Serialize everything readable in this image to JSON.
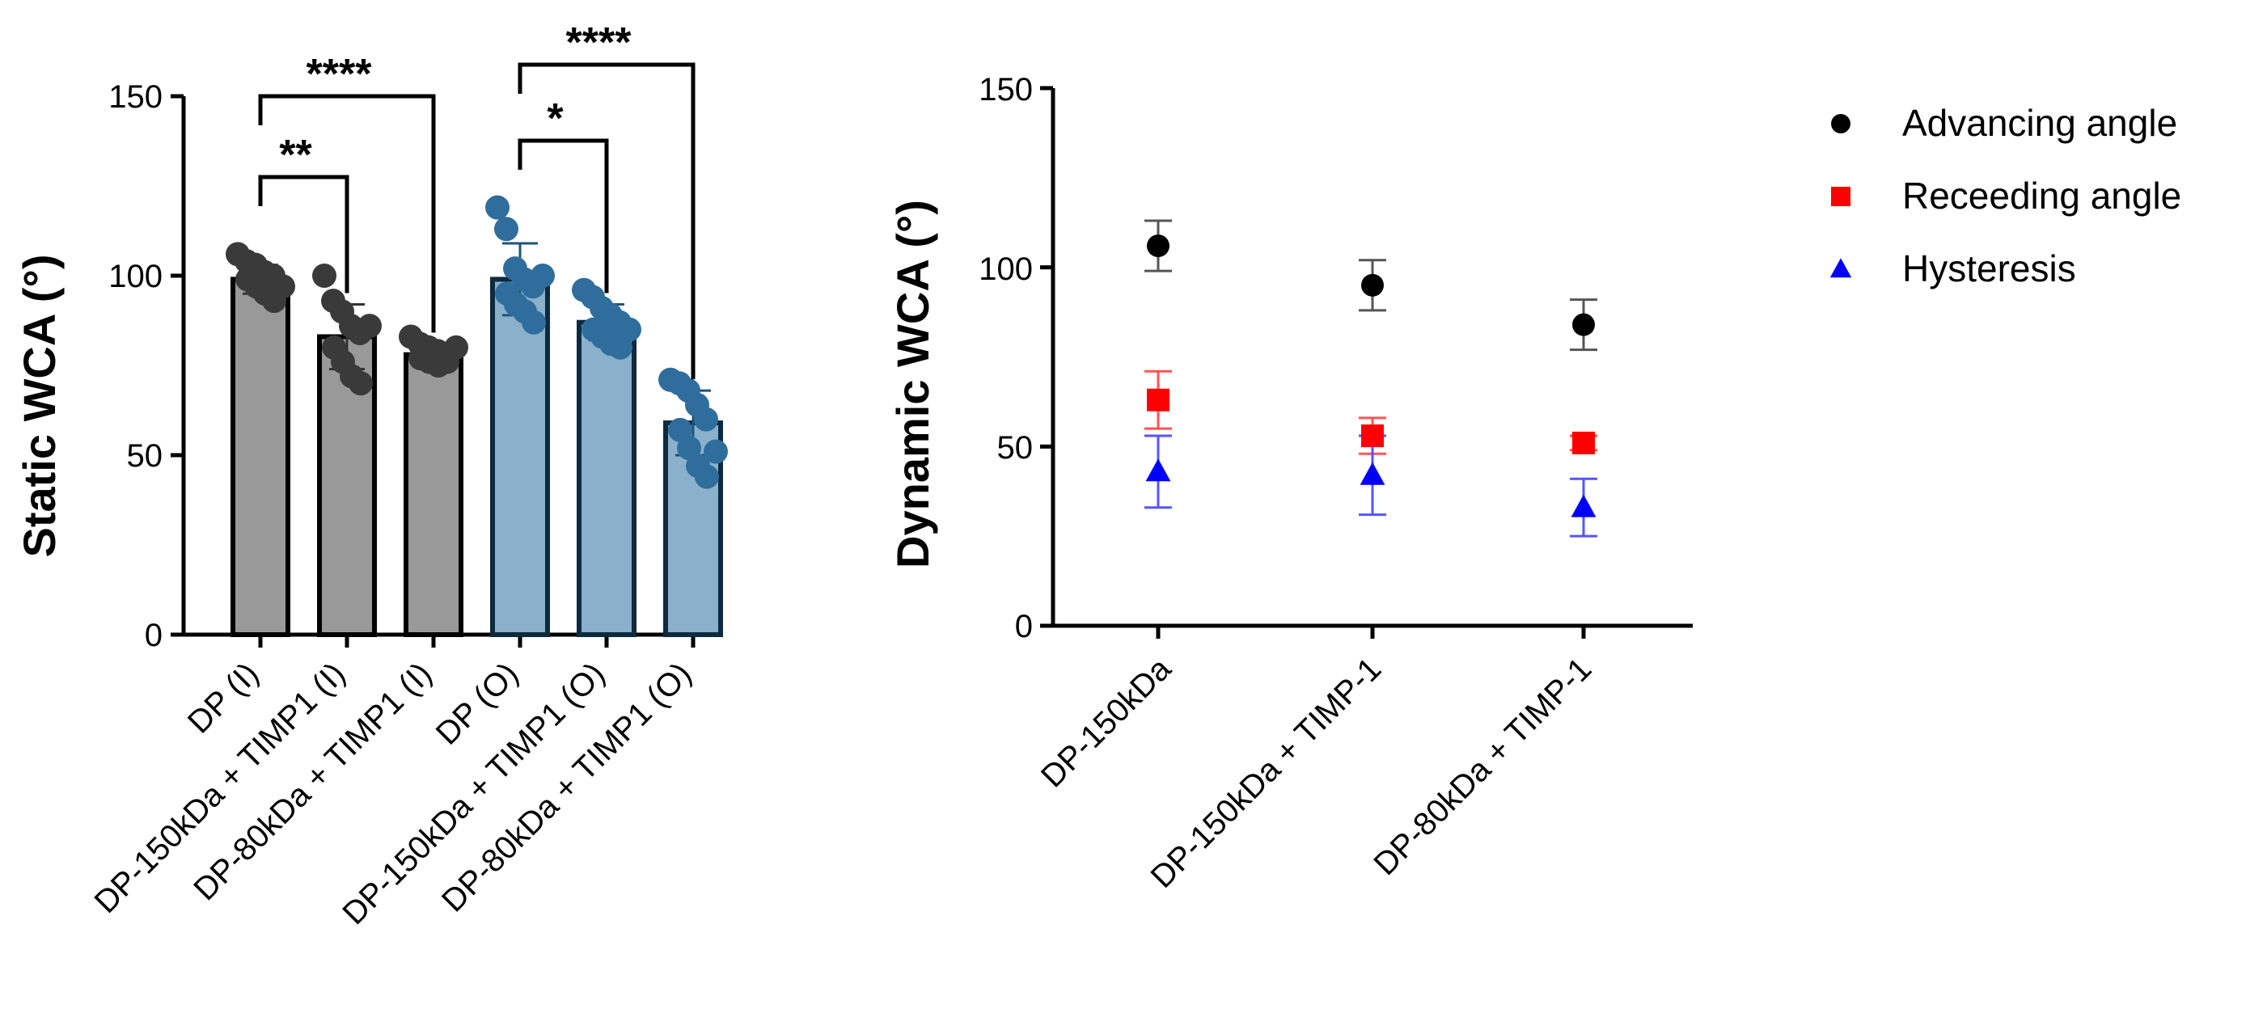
{
  "chart_data": [
    {
      "type": "bar",
      "title": "",
      "xlabel": "",
      "ylabel": "Static WCA (°)",
      "ylim": [
        0,
        150
      ],
      "yticks": [
        "0",
        "50",
        "100",
        "150"
      ],
      "categories": [
        "DP (I)",
        "DP-150kDa + TIMP1 (I)",
        "DP-80kDa + TIMP1 (I)",
        "DP (O)",
        "DP-150kDa + TIMP1 (O)",
        "DP-80kDa + TIMP1 (O)"
      ],
      "values": [
        99,
        83,
        78,
        99,
        87,
        59
      ],
      "errors": [
        4,
        9,
        3,
        10,
        5,
        9
      ],
      "colors": [
        "#999999",
        "#999999",
        "#999999",
        "#8ab0cb",
        "#8ab0cb",
        "#8ab0cb"
      ],
      "point_colors": [
        "#3a3a3a",
        "#3a3a3a",
        "#3a3a3a",
        "#2f6e9c",
        "#2f6e9c",
        "#2f6e9c"
      ],
      "points": [
        [
          106,
          104,
          103,
          101,
          100,
          99,
          97,
          95,
          93,
          97
        ],
        [
          100,
          93,
          90,
          86,
          84,
          80,
          76,
          72,
          70,
          86
        ],
        [
          83,
          81,
          80,
          79,
          78,
          77,
          76,
          75,
          76,
          80
        ],
        [
          119,
          113,
          102,
          99,
          97,
          95,
          92,
          90,
          87,
          100
        ],
        [
          96,
          94,
          91,
          89,
          87,
          85,
          83,
          81,
          80,
          85
        ],
        [
          71,
          70,
          68,
          64,
          60,
          57,
          52,
          47,
          44,
          51
        ]
      ],
      "significance": [
        {
          "from": 0,
          "to": 1,
          "label": "**",
          "level": 1
        },
        {
          "from": 0,
          "to": 2,
          "label": "****",
          "level": 2
        },
        {
          "from": 3,
          "to": 4,
          "label": "*",
          "level": 1
        },
        {
          "from": 3,
          "to": 5,
          "label": "****",
          "level": 2
        }
      ]
    },
    {
      "type": "scatter",
      "title": "",
      "xlabel": "",
      "ylabel": "Dynamic WCA (°)",
      "ylim": [
        0,
        150
      ],
      "yticks": [
        "0",
        "50",
        "100",
        "150"
      ],
      "categories": [
        "DP-150kDa",
        "DP-150kDa + TIMP-1",
        "DP-80kDa + TIMP-1"
      ],
      "legend_position": "top-right",
      "series": [
        {
          "name": "Advancing angle",
          "marker": "circle",
          "color": "#000000",
          "values": [
            106,
            95,
            84
          ],
          "errors": [
            7,
            7,
            7
          ]
        },
        {
          "name": "Receeding angle",
          "marker": "square",
          "color": "#ff0000",
          "values": [
            63,
            53,
            51
          ],
          "errors": [
            8,
            5,
            2
          ]
        },
        {
          "name": "Hysteresis",
          "marker": "triangle",
          "color": "#0000ff",
          "values": [
            43,
            42,
            33
          ],
          "errors": [
            10,
            11,
            8
          ]
        }
      ]
    }
  ]
}
